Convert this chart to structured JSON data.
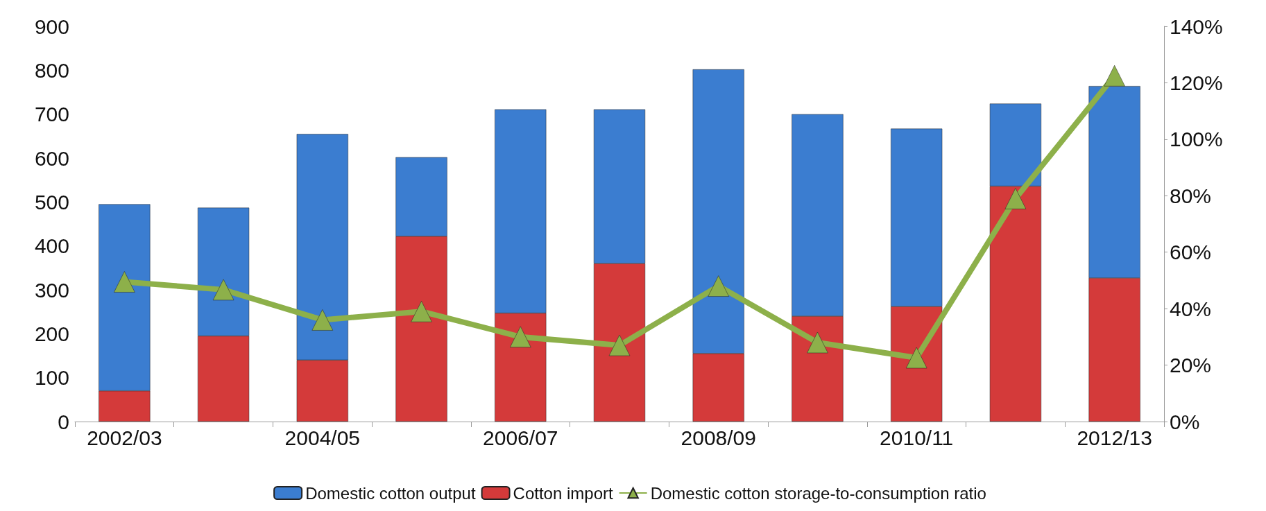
{
  "chart_data": {
    "type": "bar",
    "stacked": true,
    "categories": [
      "2002/03",
      null,
      "2004/05",
      null,
      "2006/07",
      null,
      "2008/09",
      null,
      "2010/11",
      null,
      "2012/13"
    ],
    "series": [
      {
        "name": "Domestic cotton output",
        "color": "#3b7dd0",
        "values": [
          425,
          292,
          515,
          180,
          464,
          351,
          647,
          460,
          405,
          188,
          437
        ]
      },
      {
        "name": "Cotton import",
        "color": "#d43a3a",
        "values": [
          70,
          195,
          140,
          422,
          247,
          360,
          155,
          240,
          262,
          536,
          327
        ]
      },
      {
        "name": "Domestic cotton storage-to-consumption ratio",
        "type": "line",
        "axis": "y2",
        "color": "#8db04a",
        "marker": "triangle",
        "values": [
          49.5,
          46.7,
          36,
          39,
          30,
          27,
          48,
          28,
          22.6,
          79,
          122.5
        ]
      }
    ],
    "ylim": [
      0,
      900
    ],
    "yticks": [
      0,
      100,
      200,
      300,
      400,
      500,
      600,
      700,
      800,
      900
    ],
    "y2lim": [
      0,
      140
    ],
    "y2ticks": [
      {
        "value": 0,
        "label": "0%"
      },
      {
        "value": 20,
        "label": "20%"
      },
      {
        "value": 40,
        "label": "40%"
      },
      {
        "value": 60,
        "label": "60%"
      },
      {
        "value": 80,
        "label": "80%"
      },
      {
        "value": 100,
        "label": "100%"
      },
      {
        "value": 120,
        "label": "120%"
      },
      {
        "value": 140,
        "label": "140%"
      }
    ],
    "grid": false,
    "legend": "bottom"
  }
}
